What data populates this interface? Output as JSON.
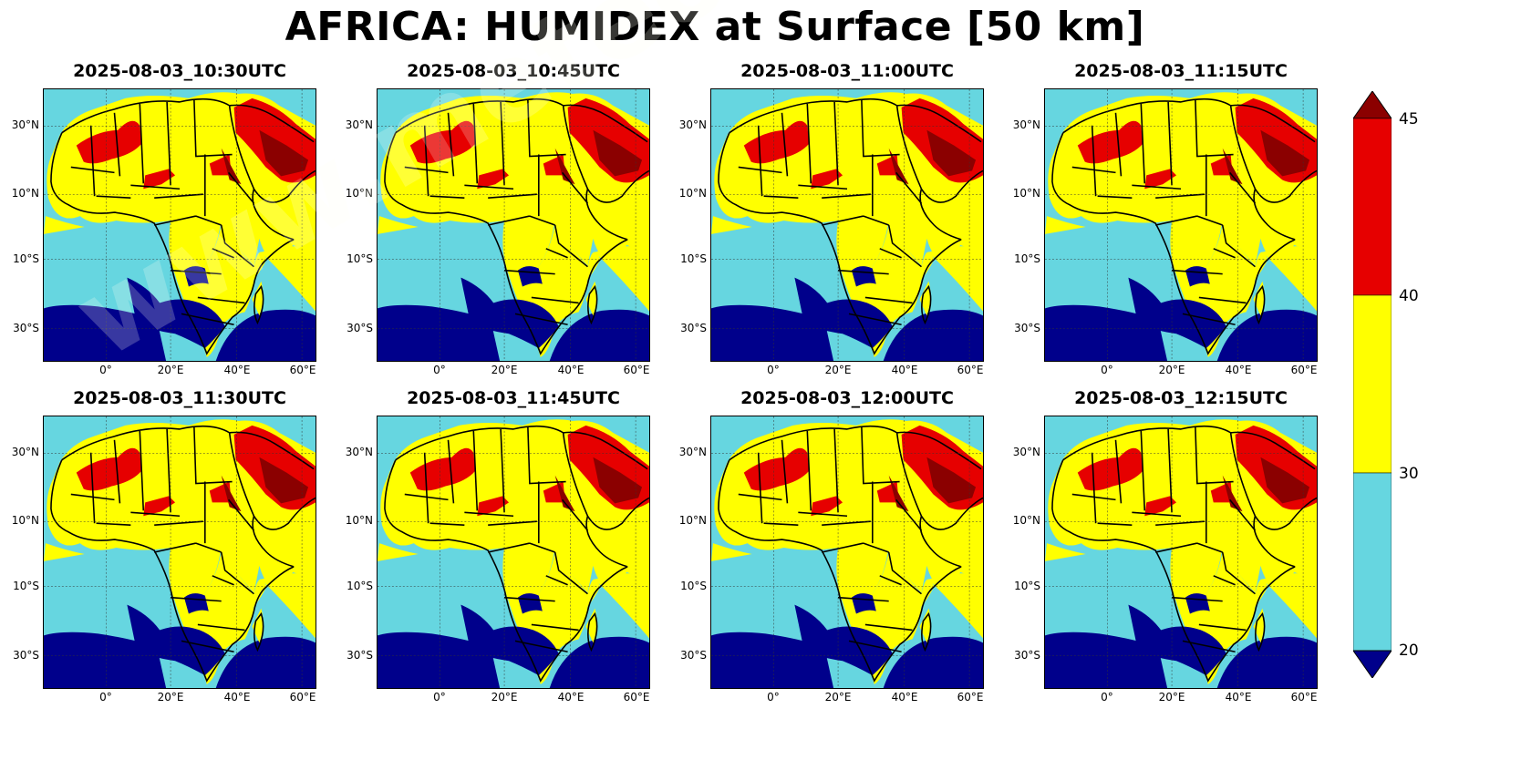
{
  "title": "AFRICA: HUMIDEX at Surface [50 km]",
  "panels": [
    {
      "time": "2025-08-03_10:30UTC"
    },
    {
      "time": "2025-08-03_10:45UTC"
    },
    {
      "time": "2025-08-03_11:00UTC"
    },
    {
      "time": "2025-08-03_11:15UTC"
    },
    {
      "time": "2025-08-03_11:30UTC"
    },
    {
      "time": "2025-08-03_11:45UTC"
    },
    {
      "time": "2025-08-03_12:00UTC"
    },
    {
      "time": "2025-08-03_12:15UTC"
    }
  ],
  "lat_labels": [
    "30°N",
    "10°N",
    "10°S",
    "30°S"
  ],
  "lon_labels": [
    "0°",
    "20°E",
    "40°E",
    "60°E"
  ],
  "colorbar": {
    "ticks": [
      "20",
      "30",
      "40",
      "45"
    ],
    "levels": [
      {
        "range": "<20",
        "color": "#00008b"
      },
      {
        "range": "20-30",
        "color": "#66d6e0"
      },
      {
        "range": "30-40",
        "color": "#ffff00"
      },
      {
        "range": "40-45",
        "color": "#e60000"
      },
      {
        "range": ">45",
        "color": "#8b0000"
      }
    ]
  },
  "watermark": "www.meteosimulation.com"
}
